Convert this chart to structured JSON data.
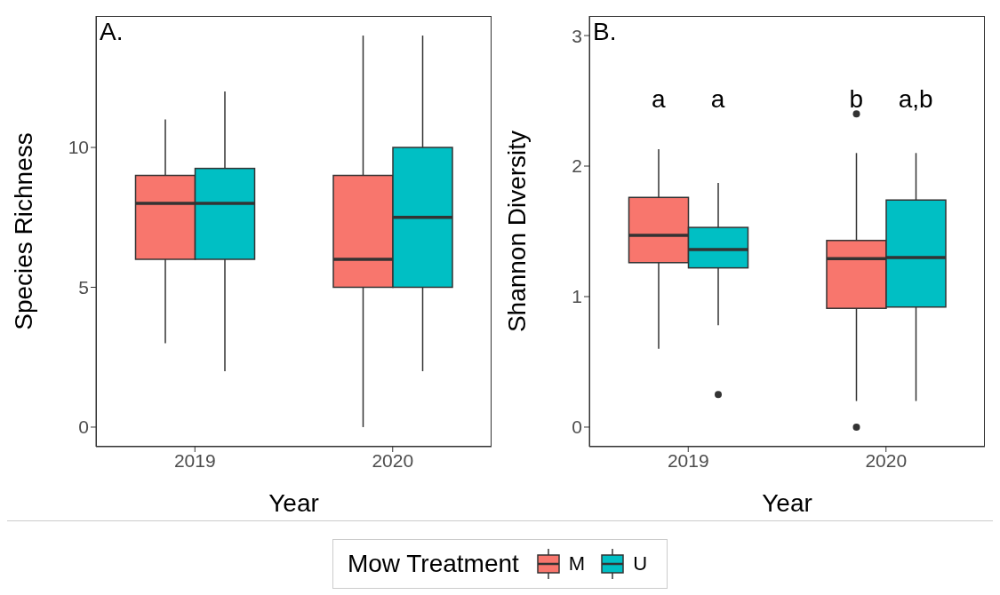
{
  "chart_data": [
    {
      "type": "box",
      "categories": [
        "2019",
        "2020"
      ],
      "xlabel": "Year",
      "ylabel": "Species Richness",
      "ylim": [
        -0.7,
        14.7
      ],
      "yticks": [
        0,
        5,
        10
      ],
      "legend": "bottom",
      "legend_title": "Mow Treatment",
      "annotations": [
        "A."
      ],
      "series": [
        {
          "name": "M",
          "color": "#f8766d",
          "boxes": [
            {
              "low": 3,
              "q1": 6,
              "median": 8,
              "q3": 9,
              "high": 11
            },
            {
              "low": 0,
              "q1": 5,
              "median": 6,
              "q3": 9,
              "high": 14
            }
          ]
        },
        {
          "name": "U",
          "color": "#00bfc4",
          "boxes": [
            {
              "low": 2,
              "q1": 6,
              "median": 8,
              "q3": 9.25,
              "high": 12
            },
            {
              "low": 2,
              "q1": 5,
              "median": 7.5,
              "q3": 10,
              "high": 14
            }
          ]
        }
      ]
    },
    {
      "type": "box",
      "categories": [
        "2019",
        "2020"
      ],
      "xlabel": "Year",
      "ylabel": "Shannon Diversity",
      "ylim": [
        -0.15,
        3.15
      ],
      "yticks": [
        0,
        1,
        2,
        3
      ],
      "annotations": [
        "B.",
        "a",
        "a",
        "b",
        "a,b"
      ],
      "series": [
        {
          "color": "#f8766d",
          "boxes": [
            {
              "low": 0.6,
              "q1": 1.26,
              "median": 1.47,
              "q3": 1.76,
              "high": 2.13
            },
            {
              "low": 0.2,
              "q1": 0.91,
              "median": 1.29,
              "q3": 1.43,
              "high": 2.1,
              "outliers": [
                2.4,
                0
              ]
            }
          ]
        },
        {
          "color": "#00bfc4",
          "boxes": [
            {
              "low": 0.78,
              "q1": 1.22,
              "median": 1.36,
              "q3": 1.53,
              "high": 1.87,
              "outliers": [
                0.25
              ]
            },
            {
              "low": 0.2,
              "q1": 0.92,
              "median": 1.3,
              "q3": 1.74,
              "high": 2.1
            }
          ]
        }
      ]
    }
  ]
}
